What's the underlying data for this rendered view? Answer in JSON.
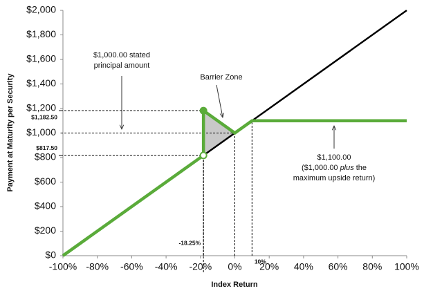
{
  "chart_data": {
    "type": "line",
    "xlabel": "Index Return",
    "ylabel": "Payment at Maturity per Security",
    "xlim": [
      -100,
      100
    ],
    "ylim": [
      0,
      2000
    ],
    "xticks": [
      {
        "value": -100,
        "label": "-100%"
      },
      {
        "value": -80,
        "label": "-80%"
      },
      {
        "value": -60,
        "label": "-60%"
      },
      {
        "value": -40,
        "label": "-40%"
      },
      {
        "value": -20,
        "label": "-20%"
      },
      {
        "value": 0,
        "label": "0%"
      },
      {
        "value": 20,
        "label": "20%"
      },
      {
        "value": 40,
        "label": "40%"
      },
      {
        "value": 60,
        "label": "60%"
      },
      {
        "value": 80,
        "label": "80%"
      },
      {
        "value": 100,
        "label": "100%"
      }
    ],
    "yticks": [
      {
        "value": 0,
        "label": "$0"
      },
      {
        "value": 200,
        "label": "$200"
      },
      {
        "value": 400,
        "label": "$400"
      },
      {
        "value": 600,
        "label": "$600"
      },
      {
        "value": 800,
        "label": "$800"
      },
      {
        "value": 1000,
        "label": "$1,000"
      },
      {
        "value": 1200,
        "label": "$1,200"
      },
      {
        "value": 1400,
        "label": "$1,400"
      },
      {
        "value": 1600,
        "label": "$1,600"
      },
      {
        "value": 1800,
        "label": "$1,800"
      },
      {
        "value": 2000,
        "label": "$2,000"
      }
    ],
    "grid": false,
    "series": [
      {
        "color": "#000000",
        "width": 2.5,
        "x": [
          -100,
          100
        ],
        "values": [
          0,
          2000
        ]
      },
      {
        "color": "#5aab3a",
        "width": 4.5,
        "x": [
          -100,
          -18.25,
          -18.25,
          0,
          10,
          100
        ],
        "values": [
          0,
          817.5,
          1182.5,
          1000,
          1100,
          1100
        ],
        "markers": [
          null,
          "open",
          "filled",
          null,
          null,
          null
        ]
      }
    ],
    "shade": {
      "series": 1,
      "points": [
        1,
        2,
        3
      ],
      "color": "#c8c8c8"
    },
    "guides": [
      {
        "x": -18.25,
        "y": 1182.5,
        "y_label": "$1,182.50",
        "lines": "both"
      },
      {
        "x": -18.25,
        "y": 817.5,
        "y_label": "$817.50",
        "x_label": "-18.25%",
        "lines": "both"
      },
      {
        "x": 0,
        "y": 1000,
        "lines": "both"
      },
      {
        "x": 10,
        "y": 1100,
        "x_label": "10%",
        "lines": "x"
      }
    ],
    "annotations": [
      {
        "lines": [
          "$1,000.00 stated",
          "principal amount"
        ]
      },
      {
        "lines": [
          "Barrier Zone"
        ]
      },
      {
        "lines": [
          "$1,100.00",
          [
            "($1,000.00",
            "plus",
            "the"
          ],
          "maximum upside return)"
        ]
      }
    ]
  }
}
